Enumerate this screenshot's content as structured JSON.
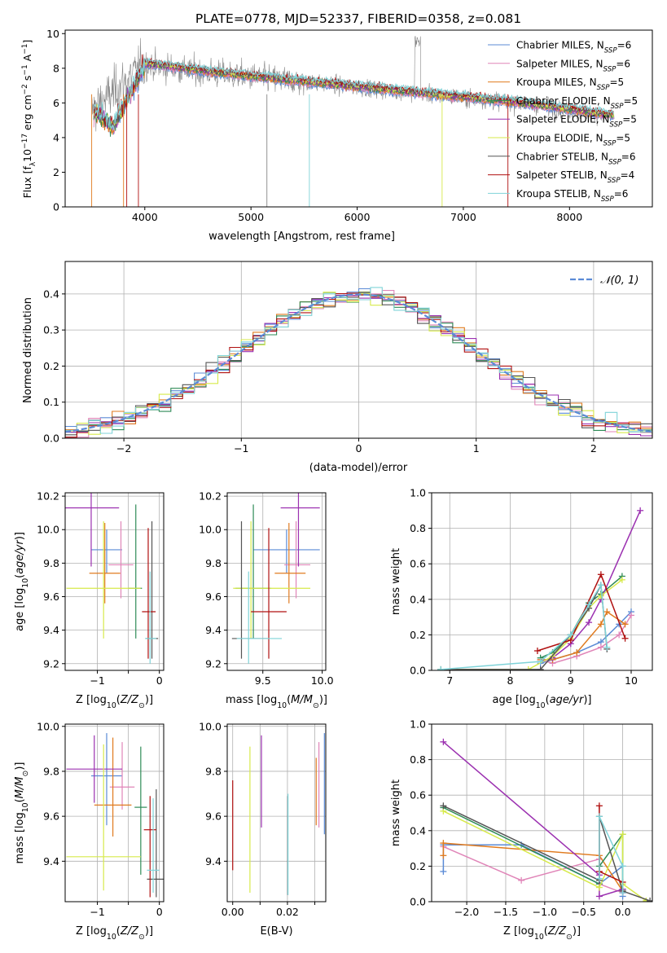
{
  "figure_title": "PLATE=0778, MJD=52337, FIBERID=0358, z=0.081",
  "colors": {
    "Chabrier MILES": "#5b8bd6",
    "Salpeter MILES": "#e085b8",
    "Kroupa MILES": "#e07b1f",
    "Chabrier ELODIE": "#2e8b57",
    "Salpeter ELODIE": "#9b30b0",
    "Kroupa ELODIE": "#d7ea4a",
    "Chabrier STELIB": "#555555",
    "Salpeter STELIB": "#b01010",
    "Kroupa STELIB": "#7fd3d8",
    "normal_curve": "#5b8bd6",
    "grid": "#b0b0b0"
  },
  "chart_data": [
    {
      "id": "spectrum",
      "type": "line",
      "xlabel": "wavelength [Angstrom, rest frame]",
      "ylabel": "Flux [fλ10⁻¹⁷ erg cm⁻² s⁻¹ A⁻¹]",
      "xlim": [
        3250,
        8780
      ],
      "ylim": [
        0,
        10.2
      ],
      "xticks": [
        4000,
        5000,
        6000,
        7000,
        8000
      ],
      "yticks": [
        0,
        2,
        4,
        6,
        8,
        10
      ],
      "grid": false,
      "legend_position": "top-right",
      "data_trend": {
        "x": [
          3500,
          4000,
          4500,
          5000,
          5500,
          6000,
          6500,
          7000,
          7500,
          8000,
          8420
        ],
        "y": [
          5.5,
          8.2,
          7.8,
          7.5,
          7.2,
          6.9,
          6.6,
          6.3,
          6.0,
          5.6,
          5.2
        ]
      },
      "model_trend": {
        "x": [
          3550,
          3700,
          3900,
          4000,
          4500,
          5000,
          5500,
          6000,
          6500,
          7000,
          7500,
          8000,
          8420
        ],
        "y": [
          5.4,
          4.6,
          7.0,
          8.3,
          7.9,
          7.55,
          7.25,
          6.95,
          6.65,
          6.35,
          6.05,
          5.65,
          5.3
        ]
      },
      "legend": [
        {
          "label": "Chabrier MILES, N",
          "sub": "SSP",
          "suffix": "=6"
        },
        {
          "label": "Salpeter MILES, N",
          "sub": "SSP",
          "suffix": "=6"
        },
        {
          "label": "Kroupa MILES, N",
          "sub": "SSP",
          "suffix": "=5"
        },
        {
          "label": "Chabrier ELODIE, N",
          "sub": "SSP",
          "suffix": "=5"
        },
        {
          "label": "Salpeter ELODIE, N",
          "sub": "SSP",
          "suffix": "=5"
        },
        {
          "label": "Kroupa ELODIE, N",
          "sub": "SSP",
          "suffix": "=5"
        },
        {
          "label": "Chabrier STELIB, N",
          "sub": "SSP",
          "suffix": "=6"
        },
        {
          "label": "Salpeter STELIB, N",
          "sub": "SSP",
          "suffix": "=4"
        },
        {
          "label": "Kroupa STELIB, N",
          "sub": "SSP",
          "suffix": "=6"
        }
      ]
    },
    {
      "id": "residuals",
      "type": "histogram",
      "xlabel": "(data-model)/error",
      "ylabel": "Normed distribution",
      "xlim": [
        -2.5,
        2.5
      ],
      "ylim": [
        0,
        0.49
      ],
      "xticks": [
        -2,
        -1,
        0,
        1,
        2
      ],
      "yticks": [
        0.0,
        0.1,
        0.2,
        0.3,
        0.4
      ],
      "grid": true,
      "legend": "𝒩(0, 1)",
      "legend_position": "top-right",
      "bin_width": 0.1,
      "normal_curve": {
        "mu": 0,
        "sigma": 1
      }
    },
    {
      "id": "age_vs_Z",
      "type": "errorbar",
      "xlabel": "Z [log10(Z/Z⊙)]",
      "ylabel": "age  [log10(age/yr)]",
      "xlim": [
        -1.52,
        0.07
      ],
      "ylim": [
        9.16,
        10.22
      ],
      "xticks": [
        -1,
        -0.5,
        0
      ],
      "xticklabels": [
        "−1",
        "",
        "0"
      ],
      "yticks": [
        9.2,
        9.4,
        9.6,
        9.8,
        10.0,
        10.2
      ],
      "grid": true,
      "points": [
        {
          "series": "Chabrier MILES",
          "x": -0.85,
          "xerr": [
            0.25,
            0.25
          ],
          "y": 9.88,
          "yerr": [
            0.14,
            0.12
          ]
        },
        {
          "series": "Salpeter MILES",
          "x": -0.62,
          "xerr": [
            0.2,
            0.2
          ],
          "y": 9.79,
          "yerr": [
            0.2,
            0.26
          ]
        },
        {
          "series": "Kroupa MILES",
          "x": -0.88,
          "xerr": [
            0.25,
            0.25
          ],
          "y": 9.74,
          "yerr": [
            0.18,
            0.3
          ]
        },
        {
          "series": "Chabrier ELODIE",
          "x": -0.38,
          "xerr": [
            0.12,
            0.1
          ],
          "y": 9.65,
          "yerr": [
            0.3,
            0.5
          ]
        },
        {
          "series": "Salpeter ELODIE",
          "x": -1.1,
          "xerr": [
            0.45,
            0.45
          ],
          "y": 10.13,
          "yerr": [
            0.35,
            0.1
          ]
        },
        {
          "series": "Kroupa ELODIE",
          "x": -0.9,
          "xerr": [
            0.6,
            0.6
          ],
          "y": 9.65,
          "yerr": [
            0.3,
            0.4
          ]
        },
        {
          "series": "Chabrier STELIB",
          "x": -0.12,
          "xerr": [
            0.1,
            0.1
          ],
          "y": 9.35,
          "yerr": [
            0.12,
            0.7
          ]
        },
        {
          "series": "Salpeter STELIB",
          "x": -0.18,
          "xerr": [
            0.1,
            0.12
          ],
          "y": 9.51,
          "yerr": [
            0.28,
            0.5
          ]
        },
        {
          "series": "Kroupa STELIB",
          "x": -0.15,
          "xerr": [
            0.08,
            0.1
          ],
          "y": 9.35,
          "yerr": [
            0.15,
            0.4
          ]
        }
      ]
    },
    {
      "id": "age_vs_mass",
      "type": "errorbar",
      "xlabel": "mass [log10(M/M⊙)]",
      "ylabel": "",
      "xlim": [
        9.2,
        10.03
      ],
      "ylim": [
        9.16,
        10.22
      ],
      "xticks": [
        9.5,
        10.0
      ],
      "xticklabels": [
        "9.5",
        "10.0"
      ],
      "yticks": [
        9.2,
        9.4,
        9.6,
        9.8,
        10.0,
        10.2
      ],
      "grid": true,
      "points": [
        {
          "series": "Chabrier MILES",
          "x": 9.7,
          "xerr": [
            0.28,
            0.28
          ],
          "y": 9.88,
          "yerr": [
            0.14,
            0.12
          ]
        },
        {
          "series": "Salpeter MILES",
          "x": 9.78,
          "xerr": [
            0.1,
            0.12
          ],
          "y": 9.79,
          "yerr": [
            0.2,
            0.26
          ]
        },
        {
          "series": "Kroupa MILES",
          "x": 9.72,
          "xerr": [
            0.12,
            0.14
          ],
          "y": 9.74,
          "yerr": [
            0.18,
            0.3
          ]
        },
        {
          "series": "Chabrier ELODIE",
          "x": 9.42,
          "xerr": [
            0.15,
            0.15
          ],
          "y": 9.65,
          "yerr": [
            0.3,
            0.5
          ]
        },
        {
          "series": "Salpeter ELODIE",
          "x": 9.8,
          "xerr": [
            0.15,
            0.18
          ],
          "y": 10.13,
          "yerr": [
            0.35,
            0.1
          ]
        },
        {
          "series": "Kroupa ELODIE",
          "x": 9.4,
          "xerr": [
            0.15,
            0.5
          ],
          "y": 9.65,
          "yerr": [
            0.3,
            0.4
          ]
        },
        {
          "series": "Chabrier STELIB",
          "x": 9.32,
          "xerr": [
            0.08,
            0.22
          ],
          "y": 9.35,
          "yerr": [
            0.12,
            0.7
          ]
        },
        {
          "series": "Salpeter STELIB",
          "x": 9.55,
          "xerr": [
            0.15,
            0.15
          ],
          "y": 9.51,
          "yerr": [
            0.28,
            0.5
          ]
        },
        {
          "series": "Kroupa STELIB",
          "x": 9.38,
          "xerr": [
            0.1,
            0.28
          ],
          "y": 9.35,
          "yerr": [
            0.15,
            0.4
          ]
        }
      ]
    },
    {
      "id": "weight_vs_age",
      "type": "line",
      "xlabel": "age  [log10(age/yr)]",
      "ylabel": "mass weight",
      "xlim": [
        6.7,
        10.35
      ],
      "ylim": [
        0,
        1.0
      ],
      "xticks": [
        7,
        8,
        9,
        10
      ],
      "yticks": [
        0.0,
        0.2,
        0.4,
        0.6,
        0.8,
        1.0
      ],
      "grid": true,
      "series": [
        {
          "name": "Chabrier MILES",
          "x": [
            8.5,
            8.7,
            9.1,
            9.5,
            9.8,
            10.0
          ],
          "y": [
            0.04,
            0.06,
            0.1,
            0.16,
            0.26,
            0.33
          ]
        },
        {
          "name": "Salpeter MILES",
          "x": [
            8.5,
            8.7,
            9.1,
            9.5,
            9.8,
            10.0
          ],
          "y": [
            0.06,
            0.04,
            0.08,
            0.13,
            0.2,
            0.31
          ]
        },
        {
          "name": "Kroupa MILES",
          "x": [
            8.5,
            8.7,
            9.1,
            9.5,
            9.6,
            9.9
          ],
          "y": [
            0.06,
            0.06,
            0.1,
            0.26,
            0.33,
            0.26
          ]
        },
        {
          "name": "Chabrier ELODIE",
          "x": [
            8.5,
            8.7,
            9.0,
            9.3,
            9.5,
            9.85
          ],
          "y": [
            0.07,
            0.1,
            0.2,
            0.38,
            0.43,
            0.53
          ]
        },
        {
          "name": "Salpeter ELODIE",
          "x": [
            8.5,
            8.7,
            9.0,
            9.3,
            9.5,
            10.15
          ],
          "y": [
            0.05,
            0.07,
            0.15,
            0.27,
            0.4,
            0.9
          ]
        },
        {
          "name": "Kroupa ELODIE",
          "x": [
            6.85,
            8.3,
            8.7,
            9.0,
            9.3,
            9.5,
            9.85
          ],
          "y": [
            0.005,
            0.005,
            0.08,
            0.18,
            0.35,
            0.42,
            0.51
          ]
        },
        {
          "name": "Chabrier STELIB",
          "x": [
            6.85,
            8.5,
            9.0,
            9.3,
            9.5,
            9.6
          ],
          "y": [
            0.005,
            0.005,
            0.2,
            0.35,
            0.48,
            0.12
          ]
        },
        {
          "name": "Salpeter STELIB",
          "x": [
            8.45,
            9.0,
            9.5,
            9.9
          ],
          "y": [
            0.11,
            0.17,
            0.54,
            0.18
          ]
        },
        {
          "name": "Kroupa STELIB",
          "x": [
            6.85,
            8.5,
            9.0,
            9.3,
            9.5,
            9.6
          ],
          "y": [
            0.005,
            0.05,
            0.2,
            0.37,
            0.48,
            0.13
          ]
        }
      ]
    },
    {
      "id": "mass_vs_Z",
      "type": "errorbar",
      "xlabel": "Z [log10(Z/Z⊙)]",
      "ylabel": "mass [log10(M/M⊙)]",
      "xlim": [
        -1.52,
        0.07
      ],
      "ylim": [
        9.22,
        10.01
      ],
      "xticks": [
        -1,
        -0.5,
        0
      ],
      "xticklabels": [
        "−1",
        "",
        "0"
      ],
      "yticks": [
        9.4,
        9.6,
        9.8,
        10.0
      ],
      "grid": true,
      "points": [
        {
          "series": "Chabrier MILES",
          "x": -0.85,
          "xerr": [
            0.25,
            0.25
          ],
          "y": 9.78,
          "yerr": [
            0.22,
            0.19
          ]
        },
        {
          "series": "Salpeter MILES",
          "x": -0.6,
          "xerr": [
            0.2,
            0.2
          ],
          "y": 9.73,
          "yerr": [
            0.1,
            0.2
          ]
        },
        {
          "series": "Kroupa MILES",
          "x": -0.75,
          "xerr": [
            0.3,
            0.3
          ],
          "y": 9.65,
          "yerr": [
            0.14,
            0.3
          ]
        },
        {
          "series": "Chabrier ELODIE",
          "x": -0.3,
          "xerr": [
            0.1,
            0.1
          ],
          "y": 9.64,
          "yerr": [
            0.3,
            0.27
          ]
        },
        {
          "series": "Salpeter ELODIE",
          "x": -1.05,
          "xerr": [
            0.45,
            0.45
          ],
          "y": 9.81,
          "yerr": [
            0.15,
            0.15
          ]
        },
        {
          "series": "Kroupa ELODIE",
          "x": -0.9,
          "xerr": [
            0.6,
            0.6
          ],
          "y": 9.42,
          "yerr": [
            0.15,
            0.5
          ]
        },
        {
          "series": "Chabrier STELIB",
          "x": -0.05,
          "xerr": [
            0.15,
            0.15
          ],
          "y": 9.32,
          "yerr": [
            0.08,
            0.4
          ]
        },
        {
          "series": "Salpeter STELIB",
          "x": -0.15,
          "xerr": [
            0.1,
            0.1
          ],
          "y": 9.54,
          "yerr": [
            0.3,
            0.15
          ]
        },
        {
          "series": "Kroupa STELIB",
          "x": -0.1,
          "xerr": [
            0.1,
            0.1
          ],
          "y": 9.36,
          "yerr": [
            0.1,
            0.32
          ]
        }
      ]
    },
    {
      "id": "mass_vs_ebv",
      "type": "errorbar",
      "xlabel": "E(B-V)",
      "ylabel": "",
      "xlim": [
        -0.002,
        0.034
      ],
      "ylim": [
        9.22,
        10.01
      ],
      "xticks": [
        0.0,
        0.01,
        0.02,
        0.03
      ],
      "xticklabels": [
        "0.00",
        "",
        "0.02",
        ""
      ],
      "yticks": [
        9.4,
        9.6,
        9.8,
        10.0
      ],
      "grid": true,
      "points": [
        {
          "series": "Chabrier MILES",
          "x": 0.0335,
          "y": 9.74,
          "yerr": [
            0.22,
            0.23
          ]
        },
        {
          "series": "Salpeter MILES",
          "x": 0.0315,
          "y": 9.74,
          "yerr": [
            0.19,
            0.19
          ]
        },
        {
          "series": "Kroupa MILES",
          "x": 0.0305,
          "y": 9.66,
          "yerr": [
            0.1,
            0.2
          ]
        },
        {
          "series": "Salpeter ELODIE",
          "x": 0.0105,
          "y": 9.82,
          "yerr": [
            0.27,
            0.14
          ]
        },
        {
          "series": "Kroupa ELODIE",
          "x": 0.0063,
          "y": 9.59,
          "yerr": [
            0.33,
            0.32
          ]
        },
        {
          "series": "Chabrier STELIB",
          "x": 0.0201,
          "y": 9.5,
          "yerr": [
            0.25,
            0.19
          ]
        },
        {
          "series": "Salpeter STELIB",
          "x": 0.0,
          "y": 9.56,
          "yerr": [
            0.2,
            0.2
          ]
        },
        {
          "series": "Kroupa STELIB",
          "x": 0.0202,
          "y": 9.5,
          "yerr": [
            0.25,
            0.2
          ]
        }
      ]
    },
    {
      "id": "weight_vs_Z",
      "type": "line",
      "xlabel": "Z [log10(Z/Z⊙)]",
      "ylabel": "mass weight",
      "xlim": [
        -2.45,
        0.38
      ],
      "ylim": [
        0,
        1.0
      ],
      "xticks": [
        -2.0,
        -1.5,
        -1.0,
        -0.5,
        0.0
      ],
      "xticklabels": [
        "−2.0",
        "−1.5",
        "−1.0",
        "−0.5",
        "0.0"
      ],
      "yticks": [
        0.0,
        0.2,
        0.4,
        0.6,
        0.8,
        1.0
      ],
      "grid": true,
      "series": [
        {
          "name": "Chabrier MILES",
          "x": [
            -2.3,
            -2.3,
            -1.3,
            -0.3,
            0.0,
            0.0
          ],
          "y": [
            0.17,
            0.32,
            0.32,
            0.1,
            0.2,
            0.03
          ]
        },
        {
          "name": "Salpeter MILES",
          "x": [
            -2.3,
            -1.3,
            -0.3,
            -0.3,
            0.0
          ],
          "y": [
            0.31,
            0.12,
            0.24,
            0.1,
            0.05
          ]
        },
        {
          "name": "Kroupa MILES",
          "x": [
            -2.3,
            -2.3,
            -0.3,
            0.0
          ],
          "y": [
            0.26,
            0.33,
            0.26,
            0.06
          ]
        },
        {
          "name": "Chabrier ELODIE",
          "x": [
            -2.3,
            -0.3,
            -0.3,
            0.0,
            0.0
          ],
          "y": [
            0.53,
            0.1,
            0.2,
            0.38,
            0.07
          ]
        },
        {
          "name": "Salpeter ELODIE",
          "x": [
            -2.3,
            -0.3,
            -0.3,
            0.0,
            0.0
          ],
          "y": [
            0.9,
            0.15,
            0.03,
            0.07,
            0.05
          ]
        },
        {
          "name": "Kroupa ELODIE",
          "x": [
            -2.3,
            -0.3,
            0.0,
            0.0,
            0.3
          ],
          "y": [
            0.51,
            0.08,
            0.38,
            0.1,
            0.005
          ]
        },
        {
          "name": "Chabrier STELIB",
          "x": [
            -2.3,
            -0.3,
            -0.3,
            0.0,
            0.35
          ],
          "y": [
            0.54,
            0.12,
            0.48,
            0.06,
            0.005
          ]
        },
        {
          "name": "Salpeter STELIB",
          "x": [
            -0.3,
            -0.3,
            0.0
          ],
          "y": [
            0.54,
            0.17,
            0.11
          ]
        },
        {
          "name": "Kroupa STELIB",
          "x": [
            -0.3,
            -0.3,
            0.0,
            0.0
          ],
          "y": [
            0.13,
            0.48,
            0.2,
            0.05
          ]
        }
      ]
    }
  ]
}
